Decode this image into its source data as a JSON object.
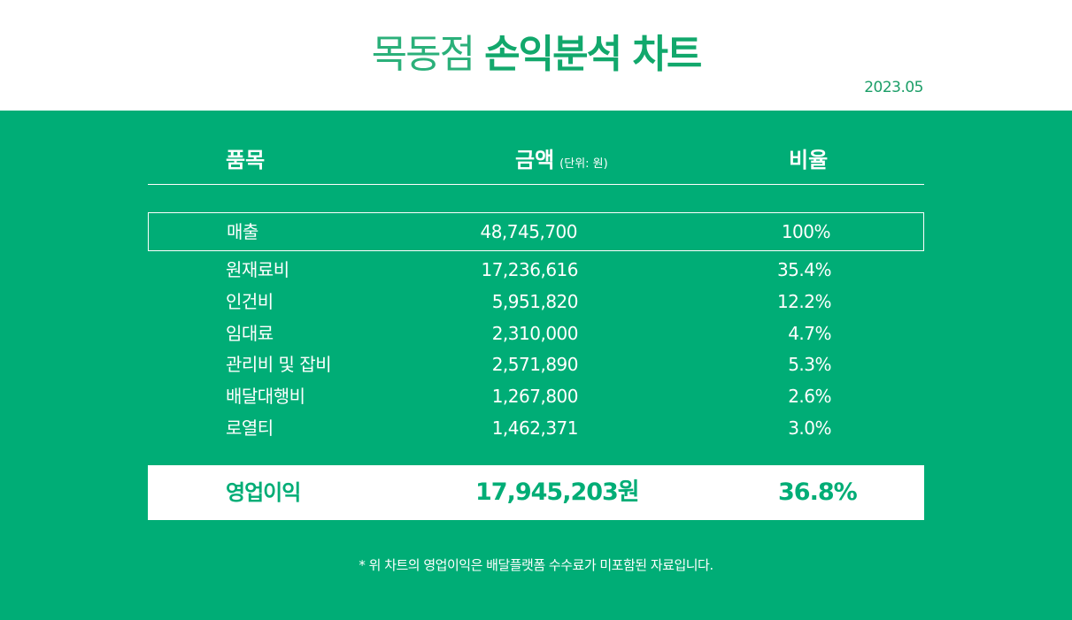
{
  "header": {
    "title_light": "목동점",
    "title_bold": "손익분석 차트",
    "date": "2023.05"
  },
  "table": {
    "columns": {
      "item": "품목",
      "amount": "금액",
      "amount_unit": "(단위: 원)",
      "ratio": "비율"
    },
    "rows": [
      {
        "name": "매출",
        "amount": "48,745,700",
        "ratio": "100%"
      },
      {
        "name": "원재료비",
        "amount": "17,236,616",
        "ratio": "35.4%"
      },
      {
        "name": "인건비",
        "amount": "5,951,820",
        "ratio": "12.2%"
      },
      {
        "name": "임대료",
        "amount": "2,310,000",
        "ratio": "4.7%"
      },
      {
        "name": "관리비 및 잡비",
        "amount": "2,571,890",
        "ratio": "5.3%"
      },
      {
        "name": "배달대행비",
        "amount": "1,267,800",
        "ratio": "2.6%"
      },
      {
        "name": "로열티",
        "amount": "1,462,371",
        "ratio": "3.0%"
      }
    ],
    "total": {
      "name": "영업이익",
      "amount": "17,945,203원",
      "ratio": "36.8%"
    }
  },
  "footnote": "* 위 차트의 영업이익은 배달플랫폼 수수료가 미포함된 자료입니다.",
  "colors": {
    "brand_green": "#00ad76",
    "title_green": "#12a86c",
    "white": "#ffffff"
  }
}
